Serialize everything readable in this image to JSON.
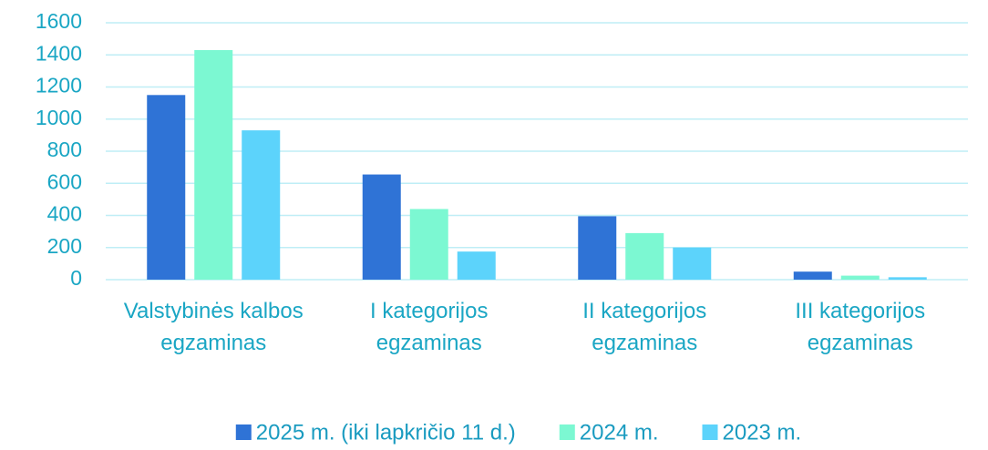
{
  "chart_data": {
    "type": "bar",
    "categories": [
      "Valstybinės kalbos egzaminas",
      "I kategorijos egzaminas",
      "II kategorijos egzaminas",
      "III kategorijos egzaminas"
    ],
    "series": [
      {
        "name": "2025 m. (iki lapkričio 11 d.)",
        "color": "#2f73d6",
        "values": [
          1150,
          655,
          395,
          50
        ]
      },
      {
        "name": "2024 m.",
        "color": "#7cf8d2",
        "values": [
          1430,
          440,
          290,
          25
        ]
      },
      {
        "name": "2023 m.",
        "color": "#5cd3fb",
        "values": [
          930,
          175,
          200,
          15
        ]
      }
    ],
    "ylim": [
      0,
      1600
    ],
    "yticks": [
      0,
      200,
      400,
      600,
      800,
      1000,
      1200,
      1400,
      1600
    ],
    "grid": true,
    "legend": "bottom"
  }
}
